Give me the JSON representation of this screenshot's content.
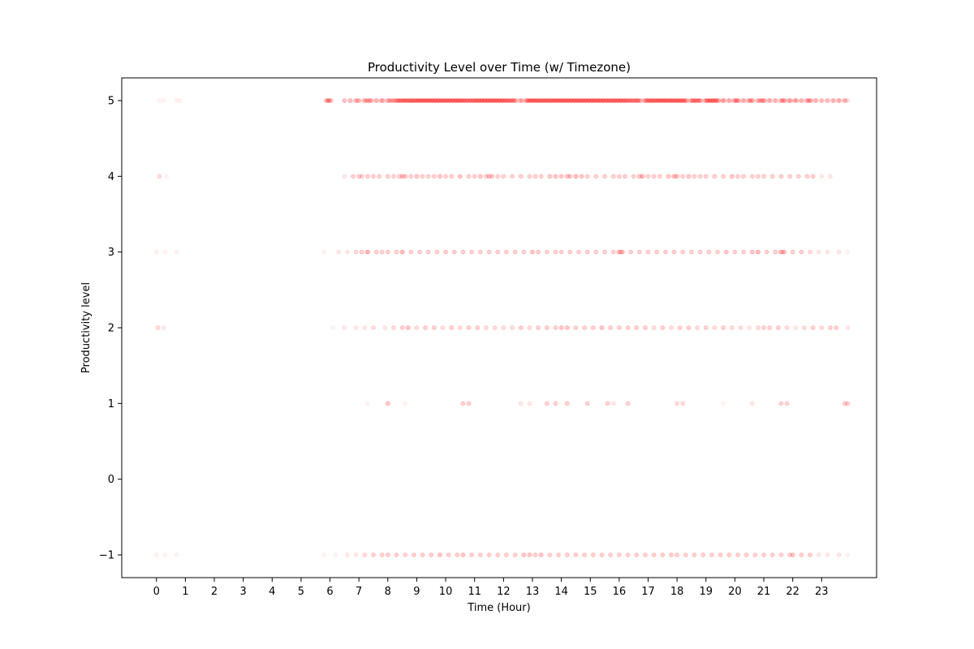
{
  "chart_data": {
    "type": "scatter",
    "title": "Productivity Level over Time (w/ Timezone)",
    "xlabel": "Time (Hour)",
    "ylabel": "Productivity level",
    "xlim": [
      -1.2,
      24.9
    ],
    "ylim": [
      -1.3,
      5.3
    ],
    "xticks": [
      0,
      1,
      2,
      3,
      4,
      5,
      6,
      7,
      8,
      9,
      10,
      11,
      12,
      13,
      14,
      15,
      16,
      17,
      18,
      19,
      20,
      21,
      22,
      23
    ],
    "xtick_labels": [
      "0",
      "1",
      "2",
      "3",
      "4",
      "5",
      "6",
      "7",
      "8",
      "9",
      "10",
      "11",
      "12",
      "13",
      "14",
      "15",
      "16",
      "17",
      "18",
      "19",
      "20",
      "21",
      "22",
      "23"
    ],
    "yticks": [
      -1,
      0,
      1,
      2,
      3,
      4,
      5
    ],
    "ytick_labels": [
      "−1",
      "0",
      "1",
      "2",
      "3",
      "4",
      "5"
    ],
    "grid": false,
    "marker_color": "#ff0000",
    "marker_alpha": 0.05,
    "series": [
      {
        "level": 5,
        "x": [
          0.1,
          0.25,
          0.7,
          0.8,
          5.9,
          6.0,
          6.5,
          6.7,
          6.9,
          7.0,
          7.2,
          7.3,
          7.4,
          7.6,
          7.8,
          8.0,
          8.1,
          8.2,
          8.3,
          8.4,
          8.5,
          8.6,
          8.7,
          8.8,
          8.9,
          9.0,
          9.1,
          9.2,
          9.3,
          9.4,
          9.5,
          9.6,
          9.7,
          9.8,
          9.9,
          10.0,
          10.1,
          10.2,
          10.3,
          10.4,
          10.5,
          10.6,
          10.7,
          10.8,
          10.9,
          11.0,
          11.1,
          11.2,
          11.3,
          11.4,
          11.5,
          11.6,
          11.7,
          11.8,
          11.9,
          12.0,
          12.1,
          12.2,
          12.3,
          12.4,
          12.6,
          12.8,
          12.9,
          13.0,
          13.1,
          13.2,
          13.3,
          13.4,
          13.5,
          13.6,
          13.7,
          13.8,
          13.9,
          14.0,
          14.1,
          14.2,
          14.3,
          14.4,
          14.5,
          14.6,
          14.7,
          14.8,
          14.9,
          15.0,
          15.1,
          15.2,
          15.3,
          15.4,
          15.5,
          15.6,
          15.7,
          15.8,
          15.9,
          16.0,
          16.1,
          16.2,
          16.3,
          16.4,
          16.5,
          16.6,
          16.7,
          16.9,
          17.0,
          17.1,
          17.2,
          17.3,
          17.4,
          17.5,
          17.6,
          17.7,
          17.8,
          17.9,
          18.0,
          18.1,
          18.2,
          18.3,
          18.5,
          18.6,
          18.7,
          18.8,
          19.0,
          19.1,
          19.2,
          19.3,
          19.4,
          19.6,
          19.8,
          20.0,
          20.1,
          20.3,
          20.5,
          20.6,
          20.8,
          20.9,
          21.0,
          21.2,
          21.4,
          21.6,
          21.7,
          21.9,
          22.1,
          22.3,
          22.5,
          22.6,
          22.8,
          23.0,
          23.2,
          23.4,
          23.6,
          23.8,
          23.9
        ],
        "density": [
          0.1,
          0.1,
          0.1,
          0.1,
          0.8,
          0.8,
          0.4,
          0.5,
          0.6,
          0.5,
          0.7,
          0.5,
          0.8,
          0.6,
          0.8,
          0.6,
          0.7,
          0.5,
          0.8,
          0.9,
          1.0,
          0.9,
          1.0,
          0.9,
          1.0,
          1.0,
          1.0,
          1.0,
          1.0,
          1.0,
          1.0,
          1.0,
          1.0,
          1.0,
          1.0,
          1.0,
          1.0,
          1.0,
          1.0,
          1.0,
          1.0,
          1.0,
          0.9,
          0.9,
          0.9,
          1.0,
          1.0,
          1.0,
          1.0,
          1.0,
          1.0,
          1.0,
          1.0,
          1.0,
          1.0,
          1.0,
          0.9,
          0.9,
          0.9,
          0.8,
          0.8,
          1.0,
          1.0,
          1.0,
          1.0,
          1.0,
          1.0,
          1.0,
          1.0,
          1.0,
          1.0,
          1.0,
          1.0,
          1.0,
          1.0,
          1.0,
          1.0,
          1.0,
          1.0,
          1.0,
          1.0,
          1.0,
          1.0,
          1.0,
          1.0,
          1.0,
          1.0,
          1.0,
          1.0,
          0.9,
          1.0,
          1.0,
          1.0,
          1.0,
          1.0,
          0.9,
          0.9,
          0.8,
          0.8,
          0.9,
          0.9,
          0.9,
          1.0,
          1.0,
          1.0,
          1.0,
          1.0,
          1.0,
          1.0,
          1.0,
          1.0,
          1.0,
          1.0,
          1.0,
          1.0,
          1.0,
          0.9,
          0.9,
          0.9,
          0.8,
          0.9,
          1.0,
          1.0,
          1.0,
          1.0,
          0.8,
          0.7,
          0.9,
          0.9,
          0.7,
          0.8,
          0.7,
          0.6,
          0.7,
          0.8,
          0.7,
          0.6,
          0.7,
          0.8,
          0.8,
          0.8,
          0.6,
          0.7,
          0.8,
          0.6,
          0.5,
          0.5,
          0.6,
          0.7,
          0.6
        ]
      },
      {
        "level": 4,
        "x": [
          0.1,
          0.35,
          6.5,
          6.8,
          7.0,
          7.1,
          7.3,
          7.5,
          7.7,
          8.0,
          8.2,
          8.4,
          8.5,
          8.6,
          8.8,
          9.0,
          9.2,
          9.4,
          9.6,
          9.8,
          10.0,
          10.2,
          10.5,
          10.8,
          11.0,
          11.2,
          11.4,
          11.5,
          11.6,
          11.8,
          12.0,
          12.3,
          12.6,
          12.9,
          13.1,
          13.3,
          13.6,
          13.8,
          14.0,
          14.2,
          14.3,
          14.5,
          14.7,
          14.9,
          15.2,
          15.5,
          15.8,
          16.0,
          16.2,
          16.5,
          16.7,
          16.8,
          17.0,
          17.2,
          17.4,
          17.7,
          17.9,
          18.0,
          18.2,
          18.4,
          18.6,
          18.8,
          19.0,
          19.3,
          19.6,
          19.9,
          20.1,
          20.3,
          20.6,
          20.8,
          21.0,
          21.3,
          21.6,
          21.9,
          22.2,
          22.5,
          22.7,
          23.0,
          23.3
        ],
        "density": [
          0.25,
          0.1,
          0.2,
          0.3,
          0.35,
          0.3,
          0.35,
          0.3,
          0.3,
          0.3,
          0.35,
          0.3,
          0.45,
          0.4,
          0.35,
          0.45,
          0.35,
          0.3,
          0.3,
          0.4,
          0.35,
          0.35,
          0.4,
          0.35,
          0.35,
          0.4,
          0.3,
          0.45,
          0.4,
          0.3,
          0.35,
          0.3,
          0.3,
          0.35,
          0.35,
          0.35,
          0.4,
          0.4,
          0.45,
          0.4,
          0.45,
          0.5,
          0.4,
          0.35,
          0.35,
          0.3,
          0.35,
          0.35,
          0.3,
          0.35,
          0.45,
          0.5,
          0.3,
          0.3,
          0.35,
          0.4,
          0.5,
          0.45,
          0.35,
          0.4,
          0.3,
          0.35,
          0.35,
          0.35,
          0.3,
          0.4,
          0.35,
          0.3,
          0.35,
          0.3,
          0.35,
          0.3,
          0.35,
          0.3,
          0.35,
          0.35,
          0.3,
          0.2,
          0.15
        ]
      },
      {
        "level": 3,
        "x": [
          0.0,
          0.3,
          0.7,
          5.8,
          6.3,
          6.6,
          6.9,
          7.1,
          7.3,
          7.6,
          7.8,
          8.0,
          8.3,
          8.5,
          8.8,
          9.1,
          9.4,
          9.7,
          10.0,
          10.3,
          10.6,
          10.9,
          11.2,
          11.5,
          11.8,
          12.1,
          12.4,
          12.7,
          13.0,
          13.2,
          13.5,
          13.8,
          14.0,
          14.3,
          14.6,
          14.9,
          15.2,
          15.5,
          15.8,
          16.0,
          16.1,
          16.4,
          16.7,
          17.0,
          17.3,
          17.6,
          17.9,
          18.2,
          18.5,
          18.8,
          19.1,
          19.4,
          19.7,
          20.0,
          20.3,
          20.6,
          20.8,
          21.1,
          21.4,
          21.6,
          21.7,
          22.0,
          22.3,
          22.6,
          22.9,
          23.2,
          23.6,
          23.9
        ],
        "density": [
          0.1,
          0.1,
          0.1,
          0.1,
          0.15,
          0.2,
          0.25,
          0.3,
          0.6,
          0.3,
          0.3,
          0.35,
          0.35,
          0.5,
          0.35,
          0.3,
          0.35,
          0.3,
          0.3,
          0.35,
          0.35,
          0.3,
          0.35,
          0.35,
          0.3,
          0.3,
          0.3,
          0.3,
          0.4,
          0.35,
          0.3,
          0.35,
          0.3,
          0.3,
          0.35,
          0.3,
          0.3,
          0.35,
          0.3,
          0.55,
          0.6,
          0.35,
          0.3,
          0.3,
          0.35,
          0.3,
          0.3,
          0.3,
          0.35,
          0.3,
          0.3,
          0.3,
          0.4,
          0.3,
          0.35,
          0.4,
          0.5,
          0.3,
          0.3,
          0.6,
          0.5,
          0.3,
          0.3,
          0.25,
          0.2,
          0.2,
          0.15,
          0.1
        ]
      },
      {
        "level": 2,
        "x": [
          0.05,
          0.25,
          6.1,
          6.5,
          6.9,
          7.2,
          7.5,
          7.9,
          8.2,
          8.5,
          8.7,
          9.0,
          9.3,
          9.6,
          9.9,
          10.2,
          10.5,
          10.8,
          11.1,
          11.4,
          11.7,
          12.0,
          12.3,
          12.6,
          12.9,
          13.2,
          13.5,
          13.8,
          14.0,
          14.2,
          14.5,
          14.8,
          15.1,
          15.4,
          15.7,
          16.0,
          16.3,
          16.6,
          16.9,
          17.2,
          17.5,
          17.8,
          18.1,
          18.4,
          18.7,
          19.0,
          19.3,
          19.6,
          19.9,
          20.2,
          20.5,
          20.8,
          21.0,
          21.2,
          21.5,
          21.8,
          22.1,
          22.4,
          22.7,
          23.0,
          23.3,
          23.5,
          23.9
        ],
        "density": [
          0.25,
          0.15,
          0.1,
          0.15,
          0.2,
          0.2,
          0.25,
          0.2,
          0.25,
          0.3,
          0.45,
          0.25,
          0.3,
          0.35,
          0.25,
          0.3,
          0.25,
          0.3,
          0.3,
          0.25,
          0.25,
          0.25,
          0.25,
          0.3,
          0.25,
          0.3,
          0.35,
          0.3,
          0.4,
          0.4,
          0.35,
          0.3,
          0.3,
          0.4,
          0.3,
          0.35,
          0.3,
          0.3,
          0.3,
          0.25,
          0.3,
          0.25,
          0.3,
          0.3,
          0.25,
          0.3,
          0.25,
          0.3,
          0.25,
          0.25,
          0.2,
          0.25,
          0.35,
          0.35,
          0.3,
          0.25,
          0.2,
          0.25,
          0.3,
          0.25,
          0.3,
          0.35,
          0.15
        ]
      },
      {
        "level": 1,
        "x": [
          7.3,
          8.0,
          8.6,
          10.6,
          10.8,
          12.6,
          12.9,
          13.5,
          13.8,
          14.2,
          14.9,
          15.6,
          15.8,
          16.3,
          18.0,
          18.2,
          19.6,
          20.6,
          21.6,
          21.8,
          23.8,
          23.9
        ],
        "density": [
          0.1,
          0.4,
          0.1,
          0.3,
          0.3,
          0.15,
          0.15,
          0.3,
          0.35,
          0.3,
          0.35,
          0.3,
          0.2,
          0.3,
          0.25,
          0.25,
          0.1,
          0.15,
          0.35,
          0.3,
          0.3,
          0.3
        ]
      },
      {
        "level": -1,
        "x": [
          0.0,
          0.3,
          0.7,
          5.8,
          6.2,
          6.6,
          6.9,
          7.2,
          7.5,
          7.8,
          8.0,
          8.3,
          8.6,
          8.9,
          9.2,
          9.5,
          9.8,
          10.1,
          10.4,
          10.6,
          10.9,
          11.2,
          11.5,
          11.8,
          12.1,
          12.4,
          12.7,
          12.9,
          13.1,
          13.3,
          13.6,
          13.9,
          14.2,
          14.5,
          14.8,
          15.1,
          15.4,
          15.7,
          16.0,
          16.3,
          16.6,
          16.9,
          17.2,
          17.5,
          17.8,
          18.0,
          18.3,
          18.6,
          18.9,
          19.2,
          19.5,
          19.8,
          20.1,
          20.4,
          20.7,
          21.0,
          21.3,
          21.6,
          21.9,
          22.0,
          22.3,
          22.6,
          22.9,
          23.2,
          23.6,
          23.9
        ],
        "density": [
          0.05,
          0.05,
          0.05,
          0.1,
          0.1,
          0.15,
          0.2,
          0.25,
          0.3,
          0.3,
          0.35,
          0.35,
          0.35,
          0.35,
          0.35,
          0.3,
          0.4,
          0.35,
          0.35,
          0.4,
          0.35,
          0.35,
          0.3,
          0.35,
          0.3,
          0.35,
          0.4,
          0.4,
          0.35,
          0.4,
          0.35,
          0.3,
          0.35,
          0.35,
          0.35,
          0.3,
          0.3,
          0.35,
          0.3,
          0.35,
          0.35,
          0.3,
          0.35,
          0.3,
          0.35,
          0.35,
          0.3,
          0.35,
          0.3,
          0.3,
          0.3,
          0.3,
          0.3,
          0.3,
          0.3,
          0.35,
          0.3,
          0.3,
          0.3,
          0.4,
          0.3,
          0.3,
          0.2,
          0.15,
          0.15,
          0.1
        ]
      }
    ]
  }
}
